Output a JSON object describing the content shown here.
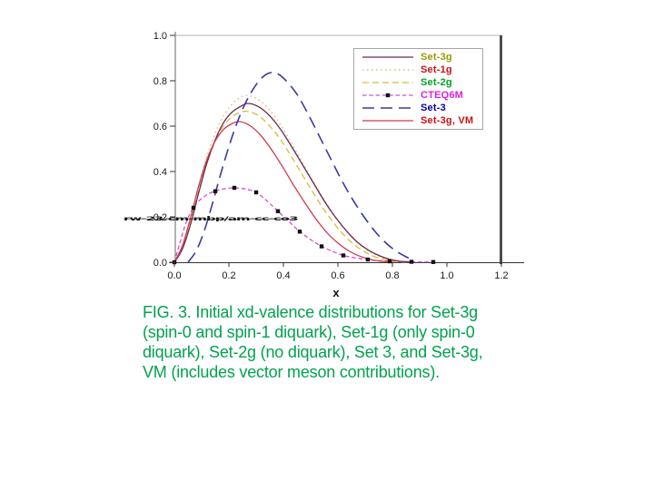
{
  "figure": {
    "caption_lines": [
      "FIG. 3. Initial xd-valence distributions for Set-3g",
      "(spin-0 and spin-1 diquark), Set-1g (only spin-0",
      "diquark), Set-2g (no diquark), Set 3, and Set-3g,",
      "VM (includes vector meson contributions)."
    ],
    "caption_color": "#00a24e"
  },
  "chart_data": {
    "type": "line",
    "title": "",
    "xlabel": "x",
    "ylabel": "",
    "xlim": [
      0,
      1.2
    ],
    "ylim": [
      0,
      1.0
    ],
    "grid": false,
    "legend_position": "top-right",
    "x_ticks": [
      "0.0",
      "0.2",
      "0.4",
      "0.6",
      "0.8",
      "1.0",
      "1.2"
    ],
    "y_ticks": [
      "0.0",
      "0.2",
      "0.4",
      "0.6",
      "0.8",
      "1.0"
    ],
    "artifact_text": "rw-23-cm-mbp/am-cc-co3w",
    "axis_color": "#444444",
    "series": [
      {
        "name": "Set-3g",
        "label_color": "#9a9a00",
        "color": "#6b2950",
        "style": "solid",
        "points": [
          [
            0,
            0
          ],
          [
            0.03,
            0.06
          ],
          [
            0.06,
            0.17
          ],
          [
            0.09,
            0.31
          ],
          [
            0.12,
            0.44
          ],
          [
            0.15,
            0.54
          ],
          [
            0.18,
            0.615
          ],
          [
            0.21,
            0.66
          ],
          [
            0.24,
            0.685
          ],
          [
            0.27,
            0.7
          ],
          [
            0.31,
            0.685
          ],
          [
            0.35,
            0.645
          ],
          [
            0.39,
            0.585
          ],
          [
            0.43,
            0.51
          ],
          [
            0.47,
            0.43
          ],
          [
            0.51,
            0.35
          ],
          [
            0.55,
            0.27
          ],
          [
            0.59,
            0.2
          ],
          [
            0.63,
            0.14
          ],
          [
            0.67,
            0.09
          ],
          [
            0.71,
            0.055
          ],
          [
            0.75,
            0.03
          ],
          [
            0.79,
            0.013
          ],
          [
            0.83,
            0.004
          ],
          [
            0.87,
            0.001
          ]
        ]
      },
      {
        "name": "Set-1g",
        "label_color": "#cc1111",
        "color": "#dbc487",
        "style": "dotted",
        "points": [
          [
            0,
            0
          ],
          [
            0.03,
            0.07
          ],
          [
            0.06,
            0.19
          ],
          [
            0.09,
            0.34
          ],
          [
            0.12,
            0.47
          ],
          [
            0.15,
            0.57
          ],
          [
            0.18,
            0.645
          ],
          [
            0.21,
            0.695
          ],
          [
            0.24,
            0.725
          ],
          [
            0.27,
            0.735
          ],
          [
            0.31,
            0.715
          ],
          [
            0.35,
            0.67
          ],
          [
            0.39,
            0.605
          ],
          [
            0.43,
            0.525
          ],
          [
            0.47,
            0.44
          ],
          [
            0.51,
            0.355
          ],
          [
            0.55,
            0.275
          ],
          [
            0.59,
            0.2
          ],
          [
            0.63,
            0.14
          ],
          [
            0.67,
            0.09
          ],
          [
            0.71,
            0.052
          ],
          [
            0.75,
            0.027
          ],
          [
            0.79,
            0.011
          ],
          [
            0.83,
            0.003
          ],
          [
            0.87,
            0.001
          ]
        ]
      },
      {
        "name": "Set-2g",
        "label_color": "#00a028",
        "color": "#d8bc3c",
        "style": "dashed",
        "points": [
          [
            0,
            0
          ],
          [
            0.03,
            0.065
          ],
          [
            0.06,
            0.18
          ],
          [
            0.09,
            0.32
          ],
          [
            0.12,
            0.44
          ],
          [
            0.15,
            0.535
          ],
          [
            0.18,
            0.6
          ],
          [
            0.21,
            0.64
          ],
          [
            0.24,
            0.66
          ],
          [
            0.27,
            0.665
          ],
          [
            0.31,
            0.645
          ],
          [
            0.35,
            0.6
          ],
          [
            0.39,
            0.54
          ],
          [
            0.43,
            0.465
          ],
          [
            0.47,
            0.385
          ],
          [
            0.51,
            0.305
          ],
          [
            0.55,
            0.23
          ],
          [
            0.59,
            0.165
          ],
          [
            0.63,
            0.11
          ],
          [
            0.67,
            0.068
          ],
          [
            0.71,
            0.038
          ],
          [
            0.75,
            0.018
          ],
          [
            0.79,
            0.007
          ],
          [
            0.83,
            0.002
          ],
          [
            0.87,
            0
          ]
        ]
      },
      {
        "name": "CTEQ6M",
        "label_color": "#dd22dd",
        "color": "#d24fd2",
        "style": "shortdash",
        "marker": "square",
        "marker_color": "#111111",
        "points": [
          [
            0,
            0
          ],
          [
            0.02,
            0.085
          ],
          [
            0.04,
            0.165
          ],
          [
            0.06,
            0.22
          ],
          [
            0.08,
            0.258
          ],
          [
            0.11,
            0.29
          ],
          [
            0.14,
            0.31
          ],
          [
            0.18,
            0.323
          ],
          [
            0.22,
            0.328
          ],
          [
            0.26,
            0.323
          ],
          [
            0.3,
            0.308
          ],
          [
            0.34,
            0.27
          ],
          [
            0.38,
            0.225
          ],
          [
            0.42,
            0.18
          ],
          [
            0.46,
            0.135
          ],
          [
            0.5,
            0.1
          ],
          [
            0.54,
            0.07
          ],
          [
            0.58,
            0.048
          ],
          [
            0.62,
            0.03
          ],
          [
            0.66,
            0.02
          ],
          [
            0.71,
            0.012
          ],
          [
            0.75,
            0.007
          ],
          [
            0.79,
            0.004
          ],
          [
            0.83,
            0.003
          ],
          [
            0.87,
            0.002
          ],
          [
            0.91,
            0.0015
          ],
          [
            0.95,
            0.001
          ]
        ],
        "markers": [
          [
            0,
            0
          ],
          [
            0.07,
            0.24
          ],
          [
            0.15,
            0.313
          ],
          [
            0.22,
            0.328
          ],
          [
            0.3,
            0.308
          ],
          [
            0.38,
            0.225
          ],
          [
            0.46,
            0.135
          ],
          [
            0.54,
            0.07
          ],
          [
            0.62,
            0.03
          ],
          [
            0.71,
            0.012
          ],
          [
            0.79,
            0.004
          ],
          [
            0.87,
            0.002
          ],
          [
            0.95,
            0.001
          ]
        ]
      },
      {
        "name": "Set-3",
        "label_color": "#0000a0",
        "color": "#3a3aa6",
        "style": "longdash",
        "points": [
          [
            0.05,
            0
          ],
          [
            0.08,
            0.05
          ],
          [
            0.11,
            0.14
          ],
          [
            0.14,
            0.26
          ],
          [
            0.17,
            0.39
          ],
          [
            0.2,
            0.51
          ],
          [
            0.23,
            0.615
          ],
          [
            0.26,
            0.7
          ],
          [
            0.29,
            0.765
          ],
          [
            0.32,
            0.812
          ],
          [
            0.35,
            0.835
          ],
          [
            0.38,
            0.83
          ],
          [
            0.41,
            0.8
          ],
          [
            0.45,
            0.74
          ],
          [
            0.49,
            0.655
          ],
          [
            0.53,
            0.56
          ],
          [
            0.57,
            0.465
          ],
          [
            0.61,
            0.37
          ],
          [
            0.65,
            0.285
          ],
          [
            0.69,
            0.21
          ],
          [
            0.73,
            0.145
          ],
          [
            0.77,
            0.092
          ],
          [
            0.81,
            0.052
          ],
          [
            0.85,
            0.024
          ],
          [
            0.88,
            0.008
          ]
        ]
      },
      {
        "name": "Set-3g, VM",
        "label_color": "#cc1111",
        "color": "#cf3a4e",
        "style": "solid",
        "points": [
          [
            0,
            0
          ],
          [
            0.03,
            0.075
          ],
          [
            0.06,
            0.2
          ],
          [
            0.09,
            0.34
          ],
          [
            0.12,
            0.455
          ],
          [
            0.15,
            0.535
          ],
          [
            0.18,
            0.585
          ],
          [
            0.21,
            0.61
          ],
          [
            0.24,
            0.62
          ],
          [
            0.28,
            0.6
          ],
          [
            0.32,
            0.555
          ],
          [
            0.36,
            0.49
          ],
          [
            0.4,
            0.415
          ],
          [
            0.44,
            0.335
          ],
          [
            0.48,
            0.26
          ],
          [
            0.52,
            0.19
          ],
          [
            0.56,
            0.13
          ],
          [
            0.6,
            0.085
          ],
          [
            0.64,
            0.05
          ],
          [
            0.68,
            0.027
          ],
          [
            0.72,
            0.012
          ],
          [
            0.76,
            0.004
          ],
          [
            0.8,
            0.001
          ]
        ]
      }
    ]
  }
}
